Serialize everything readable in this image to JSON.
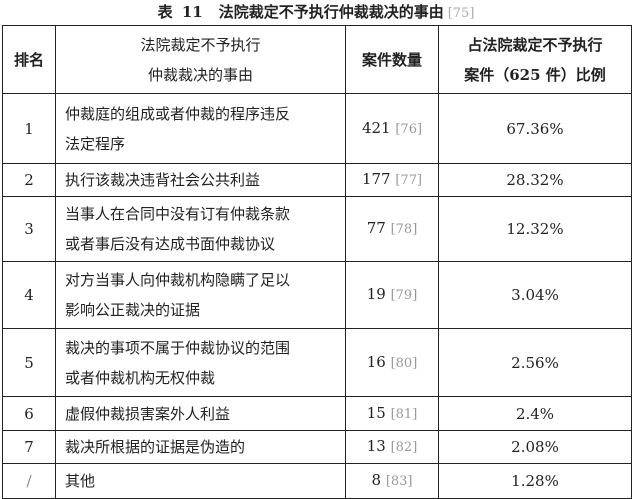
{
  "caption": {
    "label": "表",
    "number": "11",
    "title": "法院裁定不予执行仲裁裁决的事由",
    "ref": "[75]"
  },
  "headers": {
    "rank": "排名",
    "reason_line1": "法院裁定不予执行",
    "reason_line2": "仲裁裁决的事由",
    "count": "案件数量",
    "pct_line1": "占法院裁定不予执行",
    "pct_line2": "案件（625 件）比例"
  },
  "rows": [
    {
      "rank": "1",
      "reason_line1": "仲裁庭的组成或者仲裁的程序违反",
      "reason_line2": "法定程序",
      "count": "421",
      "ref": "[76]",
      "pct": "67.36%"
    },
    {
      "rank": "2",
      "reason_line1": "执行该裁决违背社会公共利益",
      "reason_line2": "",
      "count": "177",
      "ref": "[77]",
      "pct": "28.32%"
    },
    {
      "rank": "3",
      "reason_line1": "当事人在合同中没有订有仲裁条款",
      "reason_line2": "或者事后没有达成书面仲裁协议",
      "count": "77",
      "ref": "[78]",
      "pct": "12.32%"
    },
    {
      "rank": "4",
      "reason_line1": "对方当事人向仲裁机构隐瞒了足以",
      "reason_line2": "影响公正裁决的证据",
      "count": "19",
      "ref": "[79]",
      "pct": "3.04%"
    },
    {
      "rank": "5",
      "reason_line1": "裁决的事项不属于仲裁协议的范围",
      "reason_line2": "或者仲裁机构无权仲裁",
      "count": "16",
      "ref": "[80]",
      "pct": "2.56%"
    },
    {
      "rank": "6",
      "reason_line1": "虚假仲裁损害案外人利益",
      "reason_line2": "",
      "count": "15",
      "ref": "[81]",
      "pct": "2.4%"
    },
    {
      "rank": "7",
      "reason_line1": "裁决所根据的证据是伪造的",
      "reason_line2": "",
      "count": "13",
      "ref": "[82]",
      "pct": "2.08%"
    },
    {
      "rank": "/",
      "reason_line1": "其他",
      "reason_line2": "",
      "count": "8",
      "ref": "[83]",
      "pct": "1.28%"
    }
  ]
}
